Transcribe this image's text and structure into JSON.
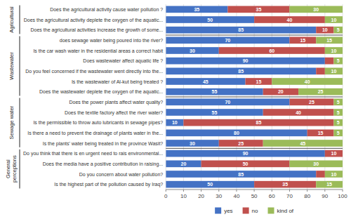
{
  "chart_data": {
    "type": "bar",
    "orientation": "horizontal",
    "stacked": true,
    "data_labels": true,
    "grid": true,
    "legend": "bottom",
    "categories": [
      "Does the agricultural activity cause water pollution ?",
      "Does the agricultural activity deplete the oxygen of the aquatic...",
      "Does the agricultural activities increase the growth of some...",
      "does sewage water being poured into the river?",
      "Is the car wash water in the residential areas a correct habit",
      "Does  wastewater affect aquatic life ?",
      "Do you feel concerned if the  wastewater went directly into the...",
      "Is the wastewater of Al-kut being treated ?",
      "Does the wastewater deplete the oxygen of the aquatic...",
      "Does the power plants affect water quality?",
      "Does the textile factory affect the river water?",
      "Is the permissible to throw auto lubricants in sewage pipes?",
      "Is there a need to prevent the drainage of plants water in the...",
      "Is the plants' water being treated in the province Wasit?",
      "Do you think that there is en urgent need to rais environmental...",
      "Does the media have a positive contribution in raising...",
      "Do you concern about water pollution?",
      "Is the highest part of the pollution caused by Iraq?"
    ],
    "series": [
      {
        "name": "yes",
        "color": "#4472C4",
        "values": [
          35,
          50,
          85,
          70,
          30,
          90,
          85,
          45,
          55,
          70,
          55,
          10,
          80,
          30,
          90,
          20,
          85,
          50
        ],
        "value_labels": [
          "35",
          "50",
          "85",
          "70",
          "30",
          "90",
          "85",
          "45",
          "55",
          "70",
          "55",
          "10",
          "80",
          "30",
          "90",
          "20",
          "85",
          "50"
        ]
      },
      {
        "name": "no",
        "color": "#C0504D",
        "values": [
          35,
          40,
          10,
          15,
          60,
          5,
          5,
          15,
          20,
          25,
          40,
          85,
          15,
          25,
          10,
          50,
          5,
          35
        ],
        "value_labels": [
          "35",
          "40",
          "10",
          "15",
          "60",
          null,
          null,
          "15",
          "20",
          "25",
          "40",
          "85",
          "15",
          "25",
          "10",
          "50",
          null,
          "35"
        ]
      },
      {
        "name": "kind of",
        "color": "#9BBB59",
        "values": [
          30,
          10,
          5,
          15,
          10,
          5,
          10,
          40,
          25,
          5,
          5,
          5,
          5,
          45,
          0,
          30,
          10,
          15
        ],
        "value_labels": [
          "30",
          "10",
          "5",
          "15",
          "10",
          "5",
          "10",
          "40",
          "25",
          "5",
          "5",
          "5",
          "5",
          "45",
          null,
          "30",
          "10",
          "15"
        ]
      }
    ],
    "groups": [
      {
        "label": "Agricultural",
        "start": 0,
        "end": 3
      },
      {
        "label": "Wastewater",
        "start": 3,
        "end": 9
      },
      {
        "label": "Sewage water",
        "start": 9,
        "end": 14
      },
      {
        "label": "General\nperceptions",
        "start": 14,
        "end": 18
      }
    ],
    "xlim": [
      0,
      100
    ],
    "xticks": [
      0,
      10,
      20,
      30,
      40,
      50,
      60,
      70,
      80,
      90,
      100
    ]
  }
}
